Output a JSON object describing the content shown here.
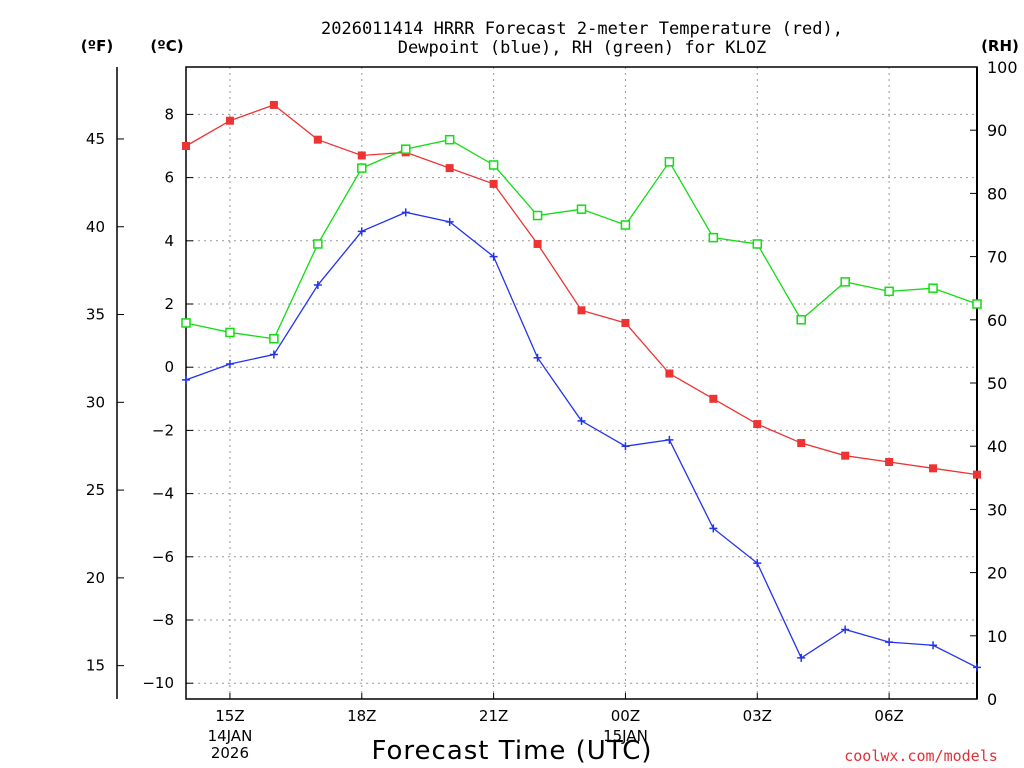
{
  "chart_data": {
    "type": "line",
    "title_lines": [
      "2026011414 HRRR Forecast 2-meter Temperature (red),",
      "Dewpoint (blue), RH (green) for KLOZ"
    ],
    "unit_labels": {
      "fahrenheit": "(ºF)",
      "celsius": "(ºC)",
      "rh": "(RH)"
    },
    "xlabel": "Forecast Time (UTC)",
    "credit": "coolwx.com/models",
    "x_range": [
      14,
      32
    ],
    "y_celsius_range": [
      -10.5,
      9.5
    ],
    "y_fahrenheit_range": [
      13.1,
      49.1
    ],
    "y_rh_range": [
      0,
      100
    ],
    "x_ticks": [
      {
        "x": 15,
        "label": "15Z"
      },
      {
        "x": 18,
        "label": "18Z"
      },
      {
        "x": 21,
        "label": "21Z"
      },
      {
        "x": 24,
        "label": "00Z"
      },
      {
        "x": 27,
        "label": "03Z"
      },
      {
        "x": 30,
        "label": "06Z"
      }
    ],
    "date_labels": [
      {
        "x": 15,
        "lines": [
          "14JAN",
          "2026"
        ]
      },
      {
        "x": 24,
        "lines": [
          "15JAN"
        ]
      }
    ],
    "celsius_ticks": [
      "8",
      "6",
      "4",
      "2",
      "0",
      "−2",
      "−4",
      "−6",
      "−8",
      "−10"
    ],
    "fahrenheit_ticks": [
      "45",
      "40",
      "35",
      "30",
      "25",
      "20",
      "15"
    ],
    "rh_ticks": [
      "100",
      "90",
      "80",
      "70",
      "60",
      "50",
      "40",
      "30",
      "20",
      "10",
      "0"
    ],
    "x": [
      14,
      15,
      16,
      17,
      18,
      19,
      20,
      21,
      22,
      23,
      24,
      25,
      26,
      27,
      28,
      29,
      30,
      31,
      32
    ],
    "series": [
      {
        "name": "2-meter Temperature",
        "axis": "celsius",
        "color": "#ee3333",
        "marker": "filled-square",
        "values": [
          7.0,
          7.8,
          8.3,
          7.2,
          6.7,
          6.8,
          6.3,
          5.8,
          3.9,
          1.8,
          1.4,
          -0.2,
          -1.0,
          -1.8,
          -2.4,
          -2.8,
          -3.0,
          -3.2,
          -3.4
        ]
      },
      {
        "name": "Dewpoint",
        "axis": "celsius",
        "color": "#2233ee",
        "marker": "plus",
        "values": [
          -0.4,
          0.1,
          0.4,
          2.6,
          4.3,
          4.9,
          4.6,
          3.5,
          0.3,
          -1.7,
          -2.5,
          -2.3,
          -5.1,
          -6.2,
          -9.2,
          -8.3,
          -8.7,
          -8.8,
          -9.5
        ]
      },
      {
        "name": "RH",
        "axis": "rh",
        "color": "#11dd11",
        "marker": "open-square",
        "values": [
          59.5,
          58,
          57,
          72,
          84,
          87,
          88.5,
          84.5,
          76.5,
          77.5,
          75,
          85,
          73,
          72,
          60,
          66,
          64.5,
          65,
          62.5
        ]
      }
    ]
  }
}
